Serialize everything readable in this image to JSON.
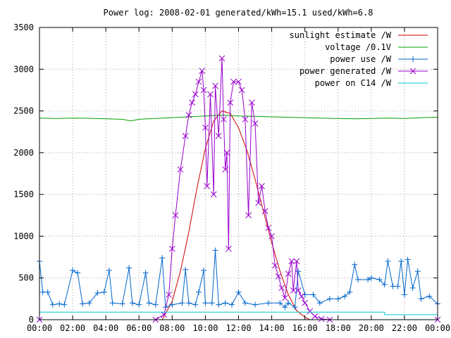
{
  "chart_data": {
    "type": "line",
    "title": "Power log: 2008-02-01 generated/kWh=15.1 used/kWh=6.8",
    "xlabel": "",
    "ylabel": "",
    "xlim": [
      0,
      24
    ],
    "ylim": [
      0,
      3500
    ],
    "grid": true,
    "legend_position": "top-right",
    "x_ticks": [
      "00:00",
      "02:00",
      "04:00",
      "06:00",
      "08:00",
      "10:00",
      "12:00",
      "14:00",
      "16:00",
      "18:00",
      "20:00",
      "22:00",
      "00:00"
    ],
    "y_ticks": [
      "0",
      "500",
      "1000",
      "1500",
      "2000",
      "2500",
      "3000",
      "3500"
    ],
    "series": [
      {
        "name": "sunlight estimate /W",
        "color": "#cc0000",
        "marker": "none",
        "points": [
          [
            7.4,
            0
          ],
          [
            8,
            220
          ],
          [
            8.5,
            580
          ],
          [
            9,
            1050
          ],
          [
            9.5,
            1580
          ],
          [
            10,
            2050
          ],
          [
            10.5,
            2380
          ],
          [
            11,
            2500
          ],
          [
            11.5,
            2470
          ],
          [
            12,
            2300
          ],
          [
            12.5,
            2030
          ],
          [
            13,
            1680
          ],
          [
            13.5,
            1300
          ],
          [
            14,
            920
          ],
          [
            14.5,
            580
          ],
          [
            15,
            300
          ],
          [
            15.5,
            110
          ],
          [
            16,
            30
          ],
          [
            16.3,
            0
          ]
        ]
      },
      {
        "name": "voltage /0.1V",
        "color": "#00a000",
        "marker": "none",
        "points": [
          [
            0,
            2415
          ],
          [
            1,
            2410
          ],
          [
            2,
            2415
          ],
          [
            3,
            2412
          ],
          [
            4,
            2405
          ],
          [
            5,
            2400
          ],
          [
            5.5,
            2380
          ],
          [
            6,
            2400
          ],
          [
            7,
            2410
          ],
          [
            8,
            2420
          ],
          [
            9,
            2430
          ],
          [
            10,
            2440
          ],
          [
            11,
            2450
          ],
          [
            12,
            2440
          ],
          [
            13,
            2435
          ],
          [
            14,
            2430
          ],
          [
            15,
            2425
          ],
          [
            16,
            2420
          ],
          [
            17,
            2415
          ],
          [
            18,
            2410
          ],
          [
            19,
            2405
          ],
          [
            20,
            2410
          ],
          [
            21,
            2415
          ],
          [
            22,
            2410
          ],
          [
            23,
            2420
          ],
          [
            24,
            2425
          ]
        ]
      },
      {
        "name": "power use /W",
        "color": "#0066cc",
        "marker": "+",
        "points": [
          [
            0,
            700
          ],
          [
            0.2,
            330
          ],
          [
            0.5,
            330
          ],
          [
            0.8,
            180
          ],
          [
            1.2,
            190
          ],
          [
            1.5,
            180
          ],
          [
            2,
            590
          ],
          [
            2.3,
            560
          ],
          [
            2.6,
            190
          ],
          [
            3,
            200
          ],
          [
            3.5,
            320
          ],
          [
            3.9,
            330
          ],
          [
            4.2,
            590
          ],
          [
            4.4,
            200
          ],
          [
            5,
            190
          ],
          [
            5.4,
            620
          ],
          [
            5.6,
            200
          ],
          [
            6,
            180
          ],
          [
            6.4,
            560
          ],
          [
            6.6,
            200
          ],
          [
            7,
            180
          ],
          [
            7.4,
            740
          ],
          [
            7.6,
            150
          ],
          [
            8,
            180
          ],
          [
            8.6,
            200
          ],
          [
            8.8,
            600
          ],
          [
            9,
            200
          ],
          [
            9.4,
            180
          ],
          [
            9.6,
            330
          ],
          [
            9.9,
            590
          ],
          [
            10,
            200
          ],
          [
            10.4,
            200
          ],
          [
            10.6,
            830
          ],
          [
            10.8,
            180
          ],
          [
            11.2,
            200
          ],
          [
            11.6,
            180
          ],
          [
            12,
            330
          ],
          [
            12.4,
            200
          ],
          [
            13,
            180
          ],
          [
            13.8,
            200
          ],
          [
            14.5,
            200
          ],
          [
            14.8,
            150
          ],
          [
            15,
            200
          ],
          [
            15.4,
            150
          ],
          [
            15.6,
            580
          ],
          [
            16,
            300
          ],
          [
            16.5,
            300
          ],
          [
            16.9,
            200
          ],
          [
            17.5,
            250
          ],
          [
            18,
            250
          ],
          [
            18.4,
            280
          ],
          [
            18.7,
            330
          ],
          [
            19,
            660
          ],
          [
            19.2,
            480
          ],
          [
            19.8,
            480
          ],
          [
            20,
            500
          ],
          [
            20.5,
            480
          ],
          [
            20.8,
            420
          ],
          [
            21,
            700
          ],
          [
            21.3,
            400
          ],
          [
            21.6,
            400
          ],
          [
            21.8,
            700
          ],
          [
            22,
            300
          ],
          [
            22.2,
            720
          ],
          [
            22.5,
            380
          ],
          [
            22.8,
            580
          ],
          [
            23,
            250
          ],
          [
            23.5,
            280
          ],
          [
            24,
            190
          ]
        ]
      },
      {
        "name": "power generated /W",
        "color": "#9900cc",
        "marker": "x",
        "points": [
          [
            0,
            0
          ],
          [
            7,
            0
          ],
          [
            7.5,
            60
          ],
          [
            7.8,
            300
          ],
          [
            8,
            850
          ],
          [
            8.2,
            1250
          ],
          [
            8.5,
            1800
          ],
          [
            8.8,
            2200
          ],
          [
            9,
            2450
          ],
          [
            9.2,
            2600
          ],
          [
            9.4,
            2700
          ],
          [
            9.6,
            2850
          ],
          [
            9.8,
            2980
          ],
          [
            9.9,
            2750
          ],
          [
            10,
            2300
          ],
          [
            10.1,
            1600
          ],
          [
            10.3,
            2700
          ],
          [
            10.5,
            1500
          ],
          [
            10.6,
            2800
          ],
          [
            10.8,
            2200
          ],
          [
            11,
            3130
          ],
          [
            11.1,
            2400
          ],
          [
            11.2,
            1800
          ],
          [
            11.3,
            2000
          ],
          [
            11.4,
            850
          ],
          [
            11.5,
            2600
          ],
          [
            11.7,
            2850
          ],
          [
            12,
            2850
          ],
          [
            12.2,
            2750
          ],
          [
            12.4,
            2400
          ],
          [
            12.6,
            1250
          ],
          [
            12.8,
            2600
          ],
          [
            13,
            2350
          ],
          [
            13.2,
            1400
          ],
          [
            13.4,
            1600
          ],
          [
            13.6,
            1300
          ],
          [
            13.8,
            1100
          ],
          [
            14,
            1000
          ],
          [
            14.2,
            650
          ],
          [
            14.4,
            520
          ],
          [
            14.6,
            380
          ],
          [
            14.8,
            260
          ],
          [
            15,
            550
          ],
          [
            15.2,
            700
          ],
          [
            15.3,
            350
          ],
          [
            15.5,
            700
          ],
          [
            15.6,
            350
          ],
          [
            15.8,
            280
          ],
          [
            16,
            200
          ],
          [
            16.3,
            100
          ],
          [
            16.6,
            40
          ],
          [
            17,
            10
          ],
          [
            17.5,
            0
          ],
          [
            24,
            0
          ]
        ]
      },
      {
        "name": "power on C14 /W",
        "color": "#00cccc",
        "marker": "none",
        "points": [
          [
            0,
            90
          ],
          [
            20.8,
            90
          ],
          [
            20.8,
            60
          ],
          [
            24,
            60
          ]
        ]
      }
    ]
  }
}
